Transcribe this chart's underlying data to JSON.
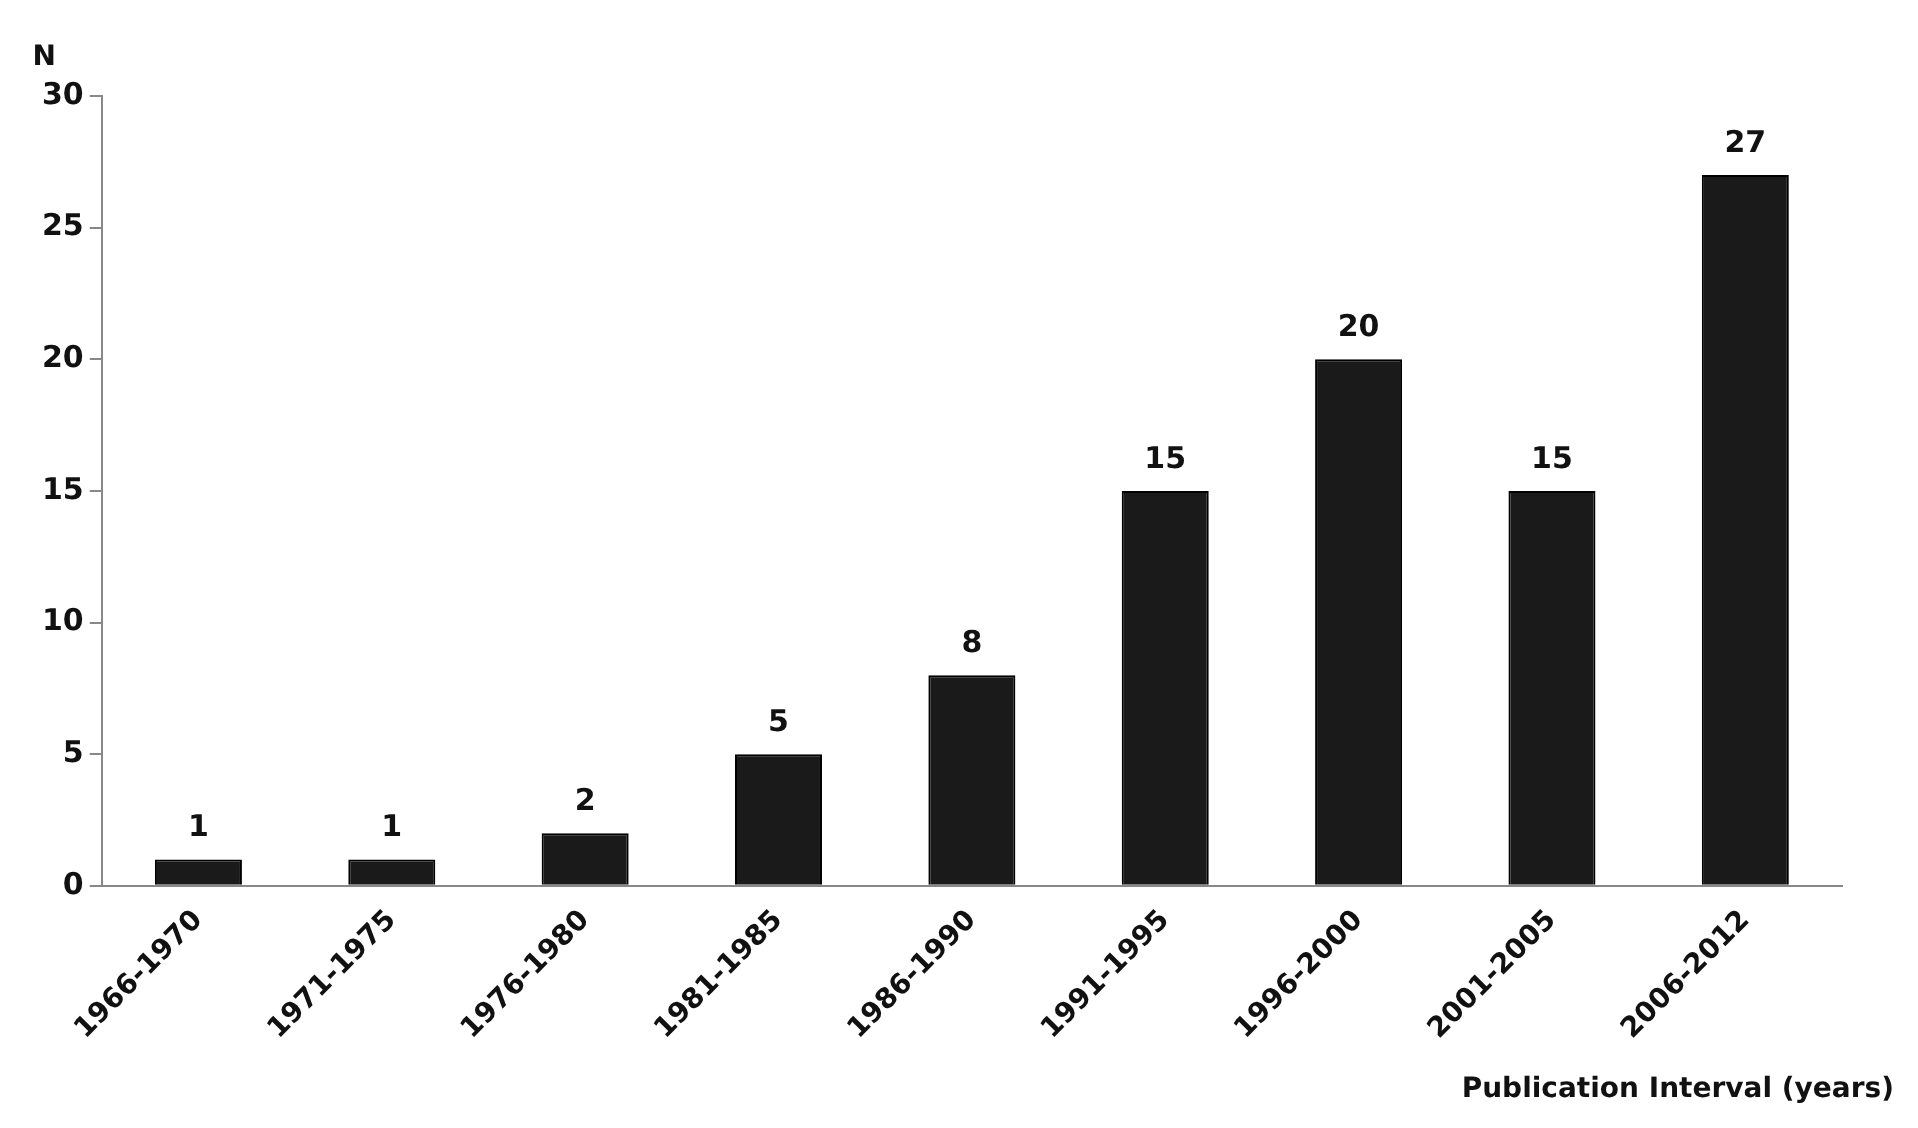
{
  "chart_data": {
    "type": "bar",
    "xlabel": "Publication Interval (years)",
    "ylabel": "N",
    "categories": [
      "1966-1970",
      "1971-1975",
      "1976-1980",
      "1981-1985",
      "1986-1990",
      "1991-1995",
      "1996-2000",
      "2001-2005",
      "2006-2012"
    ],
    "values": [
      1,
      1,
      2,
      5,
      8,
      15,
      20,
      15,
      27
    ],
    "color": "#1a1a1a",
    "ylim": [
      0,
      30
    ],
    "yticks": [
      0,
      5,
      10,
      15,
      20,
      25,
      30
    ],
    "grid": false,
    "legend": false,
    "data_labels": true
  }
}
